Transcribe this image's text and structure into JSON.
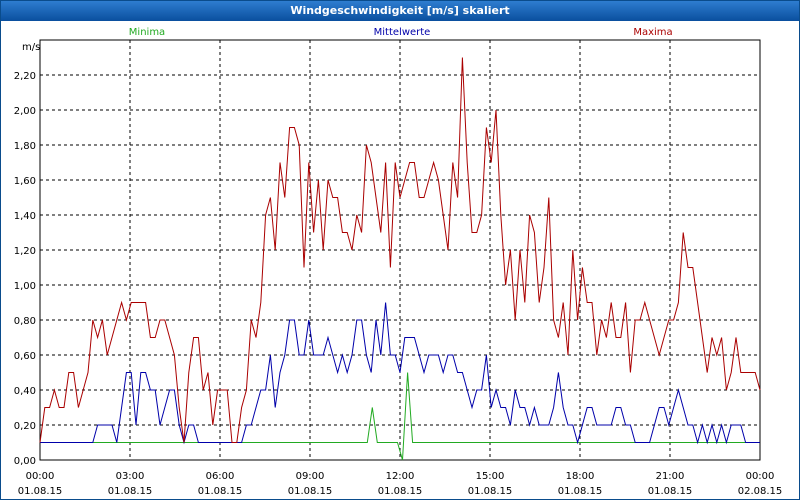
{
  "window": {
    "title": "Windgeschwindigkeit [m/s] skaliert"
  },
  "colors": {
    "minima": "#22aa22",
    "mittel": "#0000aa",
    "maxima": "#aa0000",
    "titlebar": "#1565b8"
  },
  "chart_data": {
    "type": "line",
    "title": "Windgeschwindigkeit [m/s] skaliert",
    "ylabel": "m/s",
    "ylim": [
      0,
      2.4
    ],
    "xlim_hours": [
      0,
      24
    ],
    "y_ticks": [
      "0,00",
      "0,20",
      "0,40",
      "0,60",
      "0,80",
      "1,00",
      "1,20",
      "1,40",
      "1,60",
      "1,80",
      "2,00",
      "2,20"
    ],
    "x_ticks": [
      {
        "time": "00:00",
        "date": "01.08.15"
      },
      {
        "time": "03:00",
        "date": "01.08.15"
      },
      {
        "time": "06:00",
        "date": "01.08.15"
      },
      {
        "time": "09:00",
        "date": "01.08.15"
      },
      {
        "time": "12:00",
        "date": "01.08.15"
      },
      {
        "time": "15:00",
        "date": "01.08.15"
      },
      {
        "time": "18:00",
        "date": "01.08.15"
      },
      {
        "time": "21:00",
        "date": "01.08.15"
      },
      {
        "time": "00:00",
        "date": "02.08.15"
      }
    ],
    "grid": true,
    "series": [
      {
        "name": "Minima",
        "color": "#22aa22",
        "values": [
          0.1,
          0.1,
          0.1,
          0.1,
          0.1,
          0.1,
          0.1,
          0.1,
          0.1,
          0.1,
          0.1,
          0.1,
          0.1,
          0.1,
          0.1,
          0.1,
          0.1,
          0.1,
          0.1,
          0.1,
          0.1,
          0.1,
          0.1,
          0.1,
          0.1,
          0.1,
          0.1,
          0.1,
          0.1,
          0.1,
          0.1,
          0.1,
          0.1,
          0.1,
          0.1,
          0.1,
          0.1,
          0.1,
          0.1,
          0.1,
          0.1,
          0.1,
          0.1,
          0.1,
          0.1,
          0.1,
          0.1,
          0.1,
          0.1,
          0.1,
          0.1,
          0.1,
          0.1,
          0.1,
          0.1,
          0.1,
          0.1,
          0.1,
          0.1,
          0.1,
          0.1,
          0.1,
          0.1,
          0.1,
          0.1,
          0.1,
          0.3,
          0.1,
          0.1,
          0.1,
          0.1,
          0.1,
          0.0,
          0.5,
          0.1,
          0.1,
          0.1,
          0.1,
          0.1,
          0.1,
          0.1,
          0.1,
          0.1,
          0.1,
          0.1,
          0.1,
          0.1,
          0.1,
          0.1,
          0.1,
          0.1,
          0.1,
          0.1,
          0.1,
          0.1,
          0.1,
          0.1,
          0.1,
          0.1,
          0.1,
          0.1,
          0.1,
          0.1,
          0.1,
          0.1,
          0.1,
          0.1,
          0.1,
          0.1,
          0.1,
          0.1,
          0.1,
          0.1,
          0.1,
          0.1,
          0.1,
          0.1,
          0.1,
          0.1,
          0.1,
          0.1,
          0.1,
          0.1,
          0.1,
          0.1,
          0.1,
          0.1,
          0.1,
          0.1,
          0.1,
          0.1,
          0.1,
          0.1,
          0.1,
          0.1,
          0.1,
          0.1,
          0.1,
          0.1,
          0.1,
          0.1,
          0.1,
          0.1,
          0.1
        ]
      },
      {
        "name": "Mittelwerte",
        "color": "#0000aa",
        "values": [
          0.1,
          0.1,
          0.1,
          0.1,
          0.1,
          0.1,
          0.1,
          0.1,
          0.1,
          0.1,
          0.1,
          0.1,
          0.2,
          0.2,
          0.2,
          0.2,
          0.1,
          0.3,
          0.5,
          0.5,
          0.2,
          0.5,
          0.5,
          0.4,
          0.4,
          0.2,
          0.3,
          0.4,
          0.4,
          0.2,
          0.1,
          0.2,
          0.2,
          0.1,
          0.1,
          0.1,
          0.1,
          0.1,
          0.1,
          0.1,
          0.1,
          0.1,
          0.1,
          0.2,
          0.2,
          0.3,
          0.4,
          0.4,
          0.6,
          0.3,
          0.5,
          0.6,
          0.8,
          0.8,
          0.6,
          0.6,
          0.8,
          0.6,
          0.6,
          0.6,
          0.7,
          0.6,
          0.5,
          0.6,
          0.5,
          0.6,
          0.8,
          0.8,
          0.6,
          0.5,
          0.8,
          0.6,
          0.9,
          0.6,
          0.6,
          0.5,
          0.7,
          0.7,
          0.7,
          0.6,
          0.5,
          0.6,
          0.6,
          0.6,
          0.5,
          0.6,
          0.6,
          0.5,
          0.5,
          0.4,
          0.3,
          0.4,
          0.4,
          0.6,
          0.3,
          0.4,
          0.3,
          0.3,
          0.2,
          0.4,
          0.3,
          0.3,
          0.2,
          0.3,
          0.2,
          0.2,
          0.2,
          0.3,
          0.5,
          0.3,
          0.2,
          0.2,
          0.1,
          0.2,
          0.3,
          0.3,
          0.2,
          0.2,
          0.2,
          0.2,
          0.3,
          0.3,
          0.2,
          0.2,
          0.1,
          0.1,
          0.1,
          0.1,
          0.2,
          0.3,
          0.3,
          0.2,
          0.3,
          0.4,
          0.3,
          0.2,
          0.2,
          0.1,
          0.2,
          0.1,
          0.2,
          0.1,
          0.2,
          0.1,
          0.2,
          0.2,
          0.2,
          0.1,
          0.1,
          0.1,
          0.1
        ]
      },
      {
        "name": "Maxima",
        "color": "#aa0000",
        "values": [
          0.1,
          0.3,
          0.3,
          0.4,
          0.3,
          0.3,
          0.5,
          0.5,
          0.3,
          0.4,
          0.5,
          0.8,
          0.7,
          0.8,
          0.6,
          0.7,
          0.8,
          0.9,
          0.8,
          0.9,
          0.9,
          0.9,
          0.9,
          0.7,
          0.7,
          0.8,
          0.8,
          0.7,
          0.6,
          0.3,
          0.1,
          0.5,
          0.7,
          0.7,
          0.4,
          0.5,
          0.2,
          0.4,
          0.4,
          0.4,
          0.1,
          0.1,
          0.3,
          0.4,
          0.8,
          0.7,
          0.9,
          1.4,
          1.5,
          1.2,
          1.7,
          1.5,
          1.9,
          1.9,
          1.8,
          1.1,
          1.7,
          1.3,
          1.6,
          1.2,
          1.6,
          1.5,
          1.5,
          1.3,
          1.3,
          1.2,
          1.4,
          1.3,
          1.8,
          1.7,
          1.5,
          1.3,
          1.7,
          1.1,
          1.7,
          1.5,
          1.6,
          1.7,
          1.7,
          1.5,
          1.5,
          1.6,
          1.7,
          1.6,
          1.4,
          1.2,
          1.7,
          1.5,
          2.3,
          1.7,
          1.3,
          1.3,
          1.4,
          1.9,
          1.7,
          2.0,
          1.4,
          1.0,
          1.2,
          0.8,
          1.2,
          0.9,
          1.4,
          1.3,
          0.9,
          1.1,
          1.5,
          0.8,
          0.7,
          0.9,
          0.6,
          1.2,
          0.8,
          1.1,
          0.9,
          0.9,
          0.6,
          0.8,
          0.7,
          0.9,
          0.7,
          0.7,
          0.9,
          0.5,
          0.8,
          0.8,
          0.9,
          0.8,
          0.7,
          0.6,
          0.7,
          0.8,
          0.8,
          0.9,
          1.3,
          1.1,
          1.1,
          0.9,
          0.7,
          0.5,
          0.7,
          0.6,
          0.7,
          0.4,
          0.5,
          0.7,
          0.5,
          0.5,
          0.5,
          0.5,
          0.4
        ]
      }
    ]
  }
}
